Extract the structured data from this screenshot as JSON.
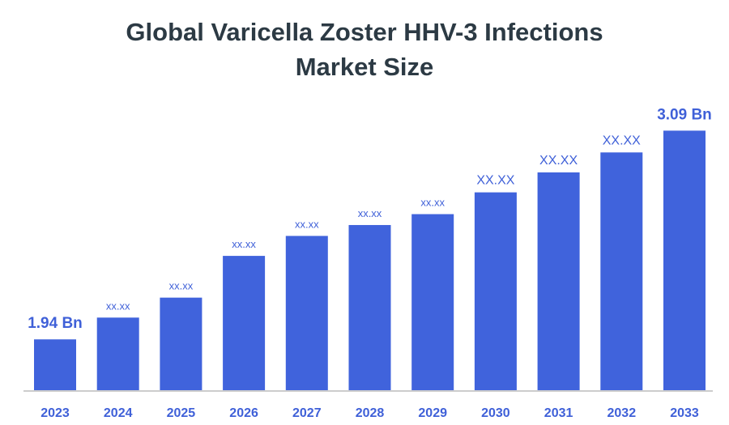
{
  "chart_data": {
    "type": "bar",
    "title_lines": [
      "Global Varicella Zoster HHV-3 Infections",
      "Market Size"
    ],
    "xlabel": "",
    "ylabel": "",
    "categories": [
      "2023",
      "2024",
      "2025",
      "2026",
      "2027",
      "2028",
      "2029",
      "2030",
      "2031",
      "2032",
      "2033"
    ],
    "values": [
      1.94,
      2.06,
      2.17,
      2.4,
      2.51,
      2.57,
      2.63,
      2.75,
      2.86,
      2.97,
      3.09
    ],
    "data_labels": [
      "1.94 Bn",
      "xx.xx",
      "xx.xx",
      "xx.xx",
      "xx.xx",
      "xx.xx",
      "xx.xx",
      "XX.XX",
      "XX.XX",
      "XX.XX",
      "3.09 Bn"
    ],
    "ylim": [
      1.66,
      3.23
    ],
    "grid": false,
    "legend": "none",
    "colors": {
      "bar": "#4063dc",
      "label": "#3f60d8",
      "title": "#2c3a44",
      "axis": "#cccccc"
    }
  }
}
